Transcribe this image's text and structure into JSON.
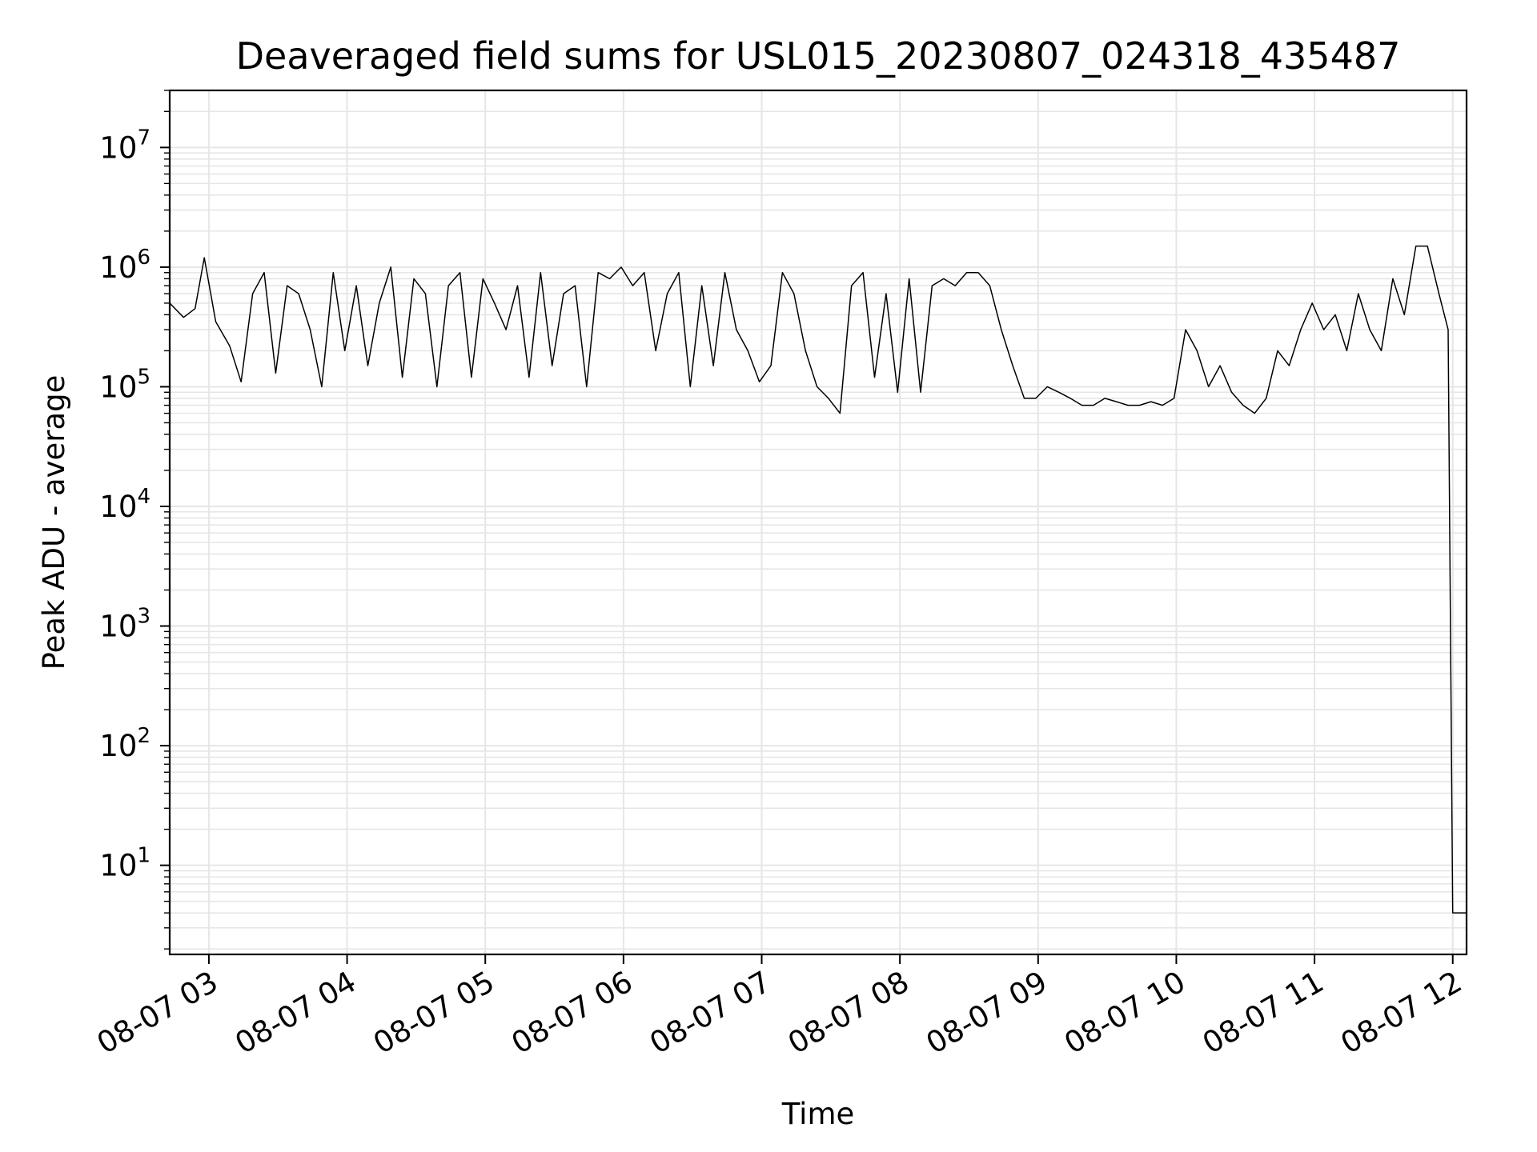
{
  "chart_data": {
    "type": "line",
    "title": "Deaveraged field sums for USL015_20230807_024318_435487",
    "xlabel": "Time",
    "ylabel": "Peak ADU - average",
    "yscale": "log",
    "xlim": [
      "2023-08-07 02:43",
      "2023-08-07 12:06"
    ],
    "ylim": [
      1.8,
      30000000
    ],
    "grid": "on (major and minor)",
    "colors": {
      "line": "#000000",
      "grid": "#e6e6e6",
      "axes": "#000000"
    },
    "x_tick_labels": [
      "08-07 03",
      "08-07 04",
      "08-07 05",
      "08-07 06",
      "08-07 07",
      "08-07 08",
      "08-07 09",
      "08-07 10",
      "08-07 11",
      "08-07 12"
    ],
    "y_tick_labels": [
      {
        "base": "10",
        "exp": "1"
      },
      {
        "base": "10",
        "exp": "2"
      },
      {
        "base": "10",
        "exp": "3"
      },
      {
        "base": "10",
        "exp": "4"
      },
      {
        "base": "10",
        "exp": "5"
      },
      {
        "base": "10",
        "exp": "6"
      },
      {
        "base": "10",
        "exp": "7"
      }
    ],
    "series": [
      {
        "x": [
          "2023-08-07 02:43",
          "2023-08-07 02:49",
          "2023-08-07 02:54",
          "2023-08-07 02:58",
          "2023-08-07 03:03",
          "2023-08-07 03:09",
          "2023-08-07 03:14",
          "2023-08-07 03:19",
          "2023-08-07 03:24",
          "2023-08-07 03:29",
          "2023-08-07 03:34",
          "2023-08-07 03:39",
          "2023-08-07 03:44",
          "2023-08-07 03:49",
          "2023-08-07 03:54",
          "2023-08-07 03:59",
          "2023-08-07 04:04",
          "2023-08-07 04:09",
          "2023-08-07 04:14",
          "2023-08-07 04:19",
          "2023-08-07 04:24",
          "2023-08-07 04:29",
          "2023-08-07 04:34",
          "2023-08-07 04:39",
          "2023-08-07 04:44",
          "2023-08-07 04:49",
          "2023-08-07 04:54",
          "2023-08-07 04:59",
          "2023-08-07 05:04",
          "2023-08-07 05:09",
          "2023-08-07 05:14",
          "2023-08-07 05:19",
          "2023-08-07 05:24",
          "2023-08-07 05:29",
          "2023-08-07 05:34",
          "2023-08-07 05:39",
          "2023-08-07 05:44",
          "2023-08-07 05:49",
          "2023-08-07 05:54",
          "2023-08-07 05:59",
          "2023-08-07 06:04",
          "2023-08-07 06:09",
          "2023-08-07 06:14",
          "2023-08-07 06:19",
          "2023-08-07 06:24",
          "2023-08-07 06:29",
          "2023-08-07 06:34",
          "2023-08-07 06:39",
          "2023-08-07 06:44",
          "2023-08-07 06:49",
          "2023-08-07 06:54",
          "2023-08-07 06:59",
          "2023-08-07 07:04",
          "2023-08-07 07:09",
          "2023-08-07 07:14",
          "2023-08-07 07:19",
          "2023-08-07 07:24",
          "2023-08-07 07:29",
          "2023-08-07 07:34",
          "2023-08-07 07:39",
          "2023-08-07 07:44",
          "2023-08-07 07:49",
          "2023-08-07 07:54",
          "2023-08-07 07:59",
          "2023-08-07 08:04",
          "2023-08-07 08:09",
          "2023-08-07 08:14",
          "2023-08-07 08:19",
          "2023-08-07 08:24",
          "2023-08-07 08:29",
          "2023-08-07 08:34",
          "2023-08-07 08:39",
          "2023-08-07 08:44",
          "2023-08-07 08:49",
          "2023-08-07 08:54",
          "2023-08-07 08:59",
          "2023-08-07 09:04",
          "2023-08-07 09:09",
          "2023-08-07 09:14",
          "2023-08-07 09:19",
          "2023-08-07 09:24",
          "2023-08-07 09:29",
          "2023-08-07 09:34",
          "2023-08-07 09:39",
          "2023-08-07 09:44",
          "2023-08-07 09:49",
          "2023-08-07 09:54",
          "2023-08-07 09:59",
          "2023-08-07 10:04",
          "2023-08-07 10:09",
          "2023-08-07 10:14",
          "2023-08-07 10:19",
          "2023-08-07 10:24",
          "2023-08-07 10:29",
          "2023-08-07 10:34",
          "2023-08-07 10:39",
          "2023-08-07 10:44",
          "2023-08-07 10:49",
          "2023-08-07 10:54",
          "2023-08-07 10:59",
          "2023-08-07 11:04",
          "2023-08-07 11:09",
          "2023-08-07 11:14",
          "2023-08-07 11:19",
          "2023-08-07 11:24",
          "2023-08-07 11:29",
          "2023-08-07 11:34",
          "2023-08-07 11:39",
          "2023-08-07 11:44",
          "2023-08-07 11:49",
          "2023-08-07 11:54",
          "2023-08-07 11:58",
          "2023-08-07 12:00",
          "2023-08-07 12:02",
          "2023-08-07 12:06"
        ],
        "y": [
          500000,
          380000,
          450000,
          1200000,
          350000,
          220000,
          110000,
          600000,
          900000,
          130000,
          700000,
          600000,
          300000,
          100000,
          900000,
          200000,
          700000,
          150000,
          500000,
          1000000,
          120000,
          800000,
          600000,
          100000,
          700000,
          900000,
          120000,
          800000,
          500000,
          300000,
          700000,
          120000,
          900000,
          150000,
          600000,
          700000,
          100000,
          900000,
          800000,
          1000000,
          700000,
          900000,
          200000,
          600000,
          900000,
          100000,
          700000,
          150000,
          900000,
          300000,
          200000,
          110000,
          150000,
          900000,
          600000,
          200000,
          100000,
          80000,
          60000,
          700000,
          900000,
          120000,
          600000,
          90000,
          800000,
          90000,
          700000,
          800000,
          700000,
          900000,
          900000,
          700000,
          300000,
          150000,
          80000,
          80000,
          100000,
          90000,
          80000,
          70000,
          70000,
          80000,
          75000,
          70000,
          70000,
          75000,
          70000,
          80000,
          300000,
          200000,
          100000,
          150000,
          90000,
          70000,
          60000,
          80000,
          200000,
          150000,
          300000,
          500000,
          300000,
          400000,
          200000,
          600000,
          300000,
          200000,
          800000,
          400000,
          1500000,
          1500000,
          600000,
          300000,
          4,
          4,
          4
        ]
      }
    ]
  }
}
